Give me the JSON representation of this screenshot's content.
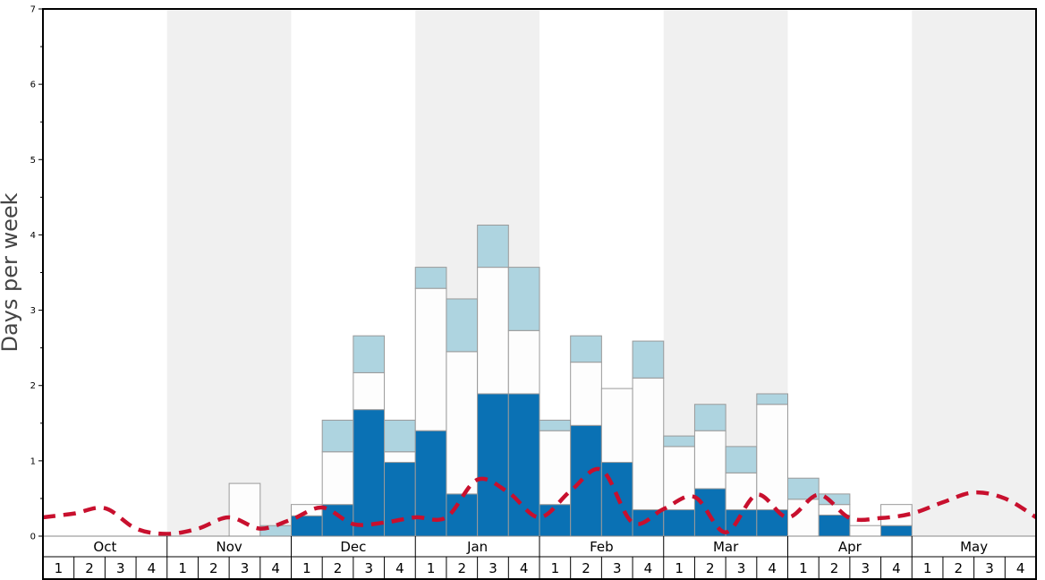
{
  "chart_data": {
    "type": "bar",
    "ylabel": "Days per week",
    "ylim": [
      0,
      7
    ],
    "yticks": [
      "0",
      "1",
      "2",
      "3",
      "4",
      "5",
      "6",
      "7"
    ],
    "months": [
      "Oct",
      "Nov",
      "Dec",
      "Jan",
      "Feb",
      "Mar",
      "Apr",
      "May"
    ],
    "week_labels": [
      "1",
      "2",
      "3",
      "4"
    ],
    "stack_series": [
      {
        "name": "",
        "color": "#0a71b4",
        "values": [
          0,
          0,
          0,
          0,
          0,
          0,
          0,
          0,
          0.27,
          0.42,
          1.68,
          0.98,
          1.4,
          0.56,
          1.89,
          1.89,
          0.42,
          1.47,
          0.98,
          0.35,
          0.35,
          0.63,
          0.35,
          0.35,
          0,
          0.28,
          0,
          0.14,
          0,
          0,
          0,
          0
        ]
      },
      {
        "name": "",
        "color": "#fdfdfd",
        "values": [
          0,
          0,
          0,
          0,
          0,
          0,
          0.7,
          0,
          0.15,
          0.7,
          0.49,
          0.14,
          1.89,
          1.89,
          1.68,
          0.84,
          0.98,
          0.84,
          0.98,
          1.75,
          0.84,
          0.77,
          0.49,
          1.4,
          0.49,
          0.14,
          0.14,
          0.28,
          0,
          0,
          0,
          0
        ]
      },
      {
        "name": "",
        "color": "#aed4e0",
        "values": [
          0,
          0,
          0,
          0,
          0,
          0,
          0,
          0.14,
          0,
          0.42,
          0.49,
          0.42,
          0.28,
          0.7,
          0.56,
          0.84,
          0.14,
          0.35,
          0,
          0.49,
          0.14,
          0.35,
          0.35,
          0.14,
          0.28,
          0.14,
          0,
          0,
          0,
          0,
          0,
          0
        ]
      }
    ],
    "trend_line": {
      "name": "",
      "color": "#c8102e",
      "values": [
        0.25,
        0.3,
        0.37,
        0.1,
        0.03,
        0.1,
        0.25,
        0.1,
        0.22,
        0.38,
        0.16,
        0.18,
        0.25,
        0.25,
        0.75,
        0.58,
        0.25,
        0.6,
        0.88,
        0.18,
        0.36,
        0.52,
        0.05,
        0.55,
        0.25,
        0.55,
        0.24,
        0.24,
        0.3,
        0.45,
        0.58,
        0.5,
        0.25
      ]
    },
    "shaded_months": [
      "Nov",
      "Jan",
      "Mar",
      "May"
    ],
    "grid": false,
    "legend": "none"
  }
}
